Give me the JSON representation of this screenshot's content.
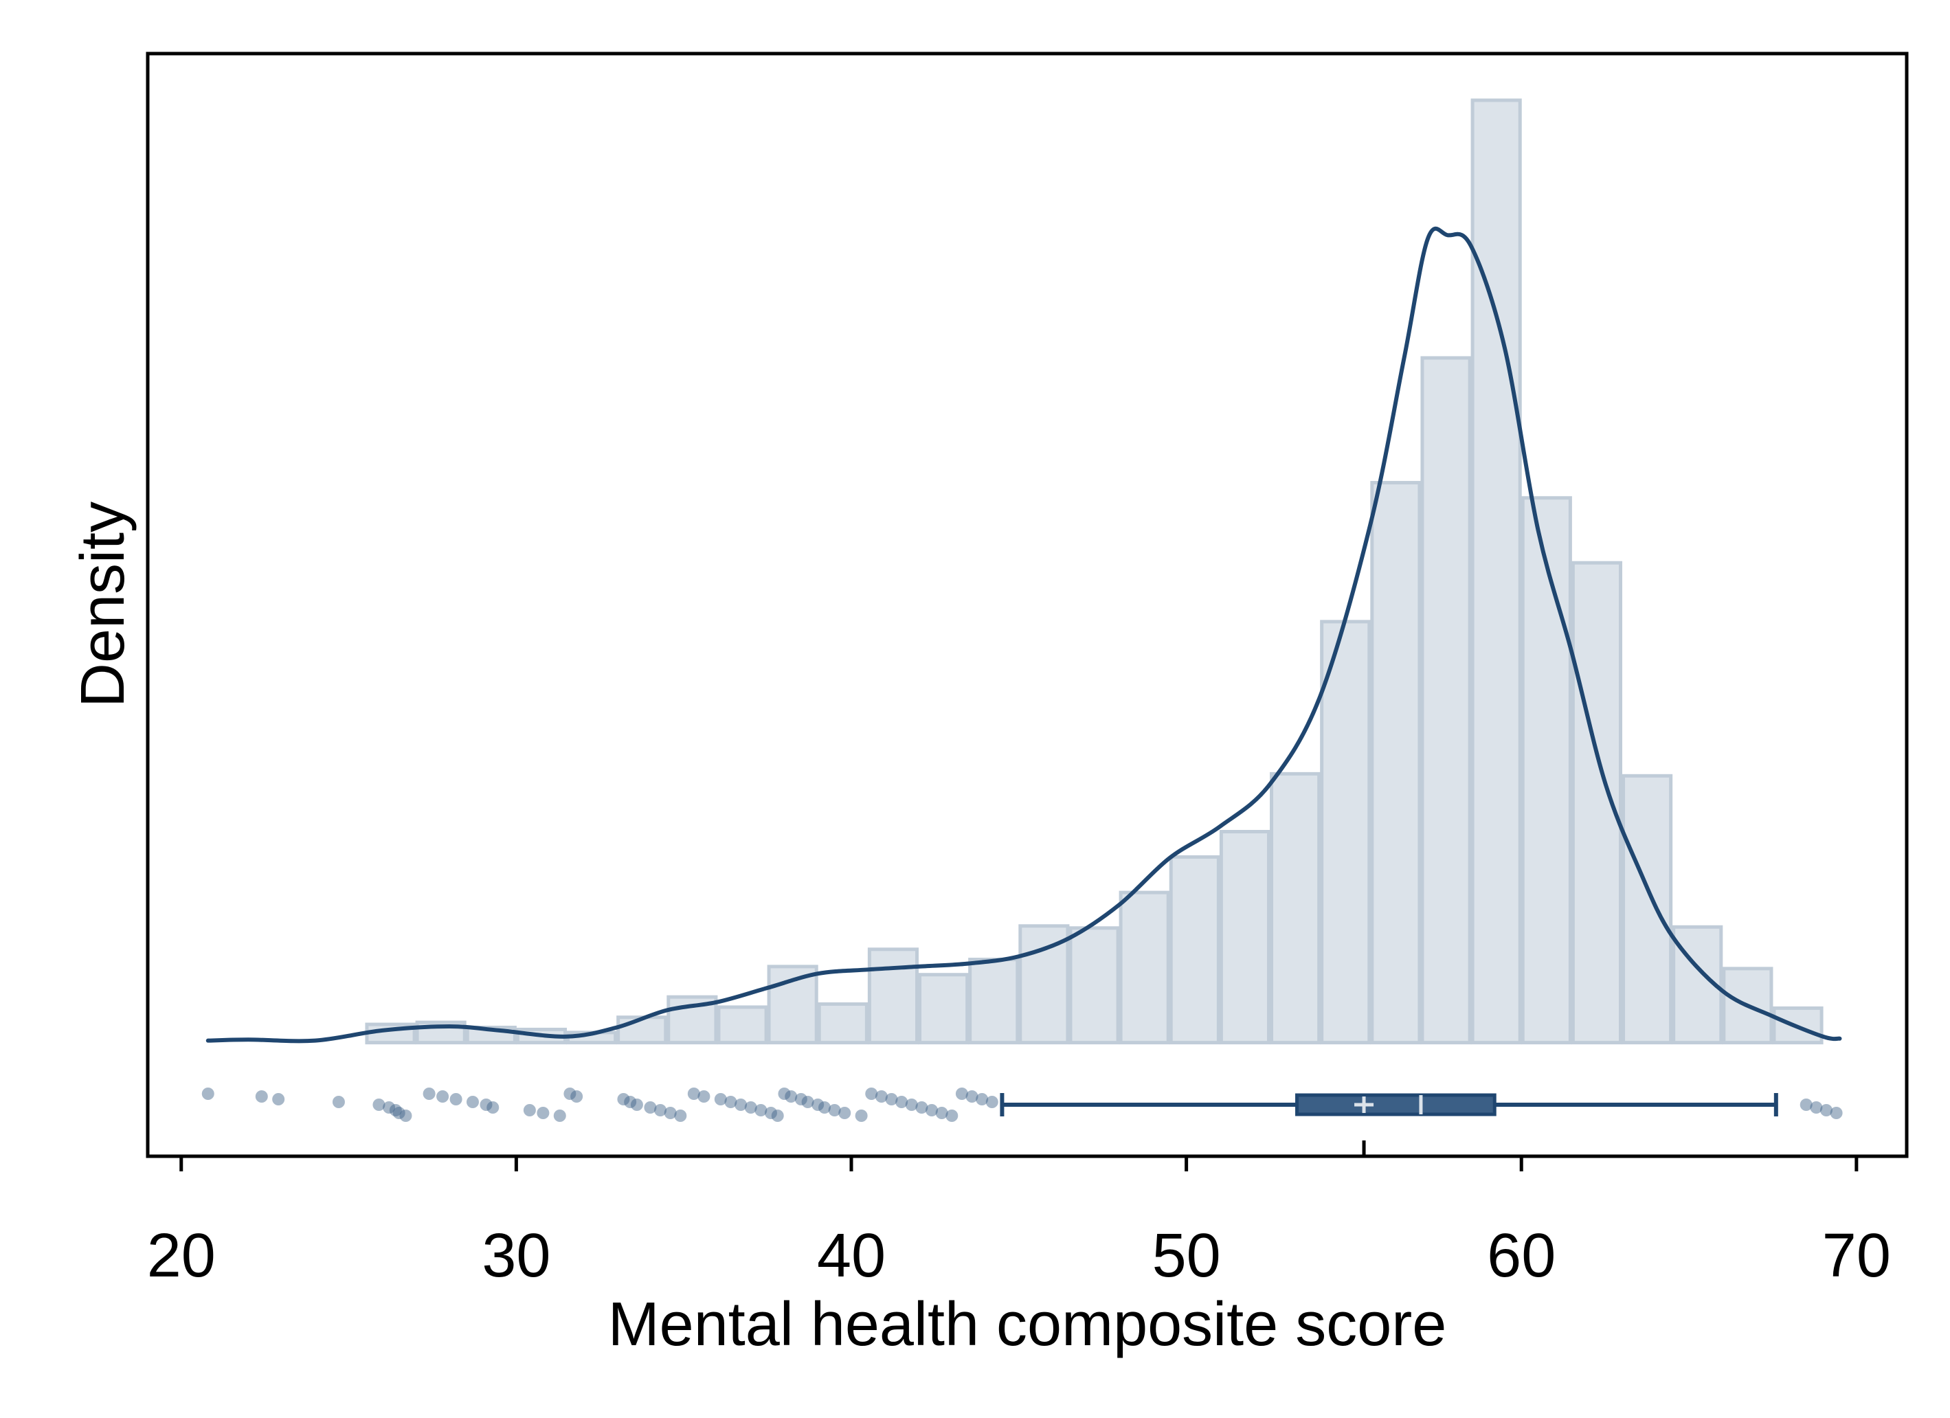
{
  "chart_data": {
    "type": "histogram",
    "xlabel": "Mental health composite score",
    "ylabel": "Density",
    "xlim": [
      19,
      71.5
    ],
    "x_ticks": [
      20,
      30,
      40,
      50,
      60,
      70
    ],
    "x_tick_labels": [
      "20",
      "30",
      "40",
      "50",
      "60",
      "70"
    ],
    "y_ticks_shown": false,
    "grid": false,
    "colors": {
      "bar_fill": "#dce3ea",
      "bar_edge": "#c0ccd8",
      "line": "#1f4670",
      "box_fill": "#3b5f86",
      "median_mark": "#dce3ea"
    },
    "histogram": {
      "bin_edges": [
        25.5,
        27.0,
        28.5,
        30.0,
        31.5,
        33.0,
        34.5,
        36.0,
        37.5,
        39.0,
        40.5,
        42.0,
        43.5,
        45.0,
        46.5,
        48.0,
        49.5,
        51.0,
        52.5,
        54.0,
        55.5,
        57.0,
        58.5,
        60.0,
        61.5,
        63.0,
        64.5,
        66.0,
        67.5,
        69.0
      ],
      "densities": [
        0.0018,
        0.002,
        0.0015,
        0.0013,
        0.001,
        0.0025,
        0.0045,
        0.0035,
        0.0075,
        0.0038,
        0.0092,
        0.0067,
        0.0082,
        0.0115,
        0.0113,
        0.0148,
        0.0183,
        0.0208,
        0.0265,
        0.0415,
        0.0552,
        0.0675,
        0.0929,
        0.0537,
        0.0473,
        0.0263,
        0.0114,
        0.0073,
        0.0034,
        0.0012
      ]
    },
    "density_curve": {
      "x": [
        20.8,
        22,
        24,
        26,
        28,
        29.5,
        31.5,
        33,
        34.5,
        36,
        37.5,
        39,
        40.5,
        42,
        43.5,
        45,
        46.5,
        48,
        49.5,
        51,
        52.5,
        54,
        55.5,
        56.5,
        57.2,
        57.8,
        58.5,
        59.5,
        60.5,
        61.5,
        62.5,
        63.5,
        64.5,
        66,
        67.5,
        69,
        69.5
      ],
      "y": [
        0.0002,
        0.0003,
        0.0002,
        0.0012,
        0.0016,
        0.0012,
        0.0006,
        0.0015,
        0.0032,
        0.004,
        0.0054,
        0.0068,
        0.0072,
        0.0075,
        0.0078,
        0.0085,
        0.0103,
        0.0136,
        0.0182,
        0.0213,
        0.0255,
        0.0342,
        0.0512,
        0.0675,
        0.0792,
        0.0796,
        0.0785,
        0.0685,
        0.0505,
        0.0385,
        0.0256,
        0.0172,
        0.0105,
        0.0051,
        0.0026,
        0.0006,
        0.0004
      ]
    },
    "ylim": [
      -0.0112,
      0.0975
    ],
    "boxplot": {
      "whisker_low": 44.5,
      "q1": 53.3,
      "median": 57.0,
      "mean": 55.3,
      "q3": 59.2,
      "whisker_high": 67.6,
      "outliers": [
        20.8,
        22.4,
        22.9,
        24.7,
        25.9,
        26.2,
        26.4,
        26.5,
        26.7,
        27.4,
        27.8,
        28.2,
        28.7,
        29.1,
        29.3,
        30.4,
        30.8,
        31.3,
        31.6,
        31.8,
        33.2,
        33.4,
        33.6,
        34.0,
        34.3,
        34.6,
        34.9,
        35.3,
        35.6,
        36.1,
        36.4,
        36.7,
        37.0,
        37.3,
        37.6,
        37.8,
        38.0,
        38.2,
        38.5,
        38.7,
        39.0,
        39.2,
        39.5,
        39.8,
        40.3,
        40.6,
        40.9,
        41.2,
        41.5,
        41.8,
        42.1,
        42.4,
        42.7,
        43.0,
        43.3,
        43.6,
        43.9,
        44.2,
        68.5,
        68.8,
        69.1,
        69.4
      ]
    }
  }
}
